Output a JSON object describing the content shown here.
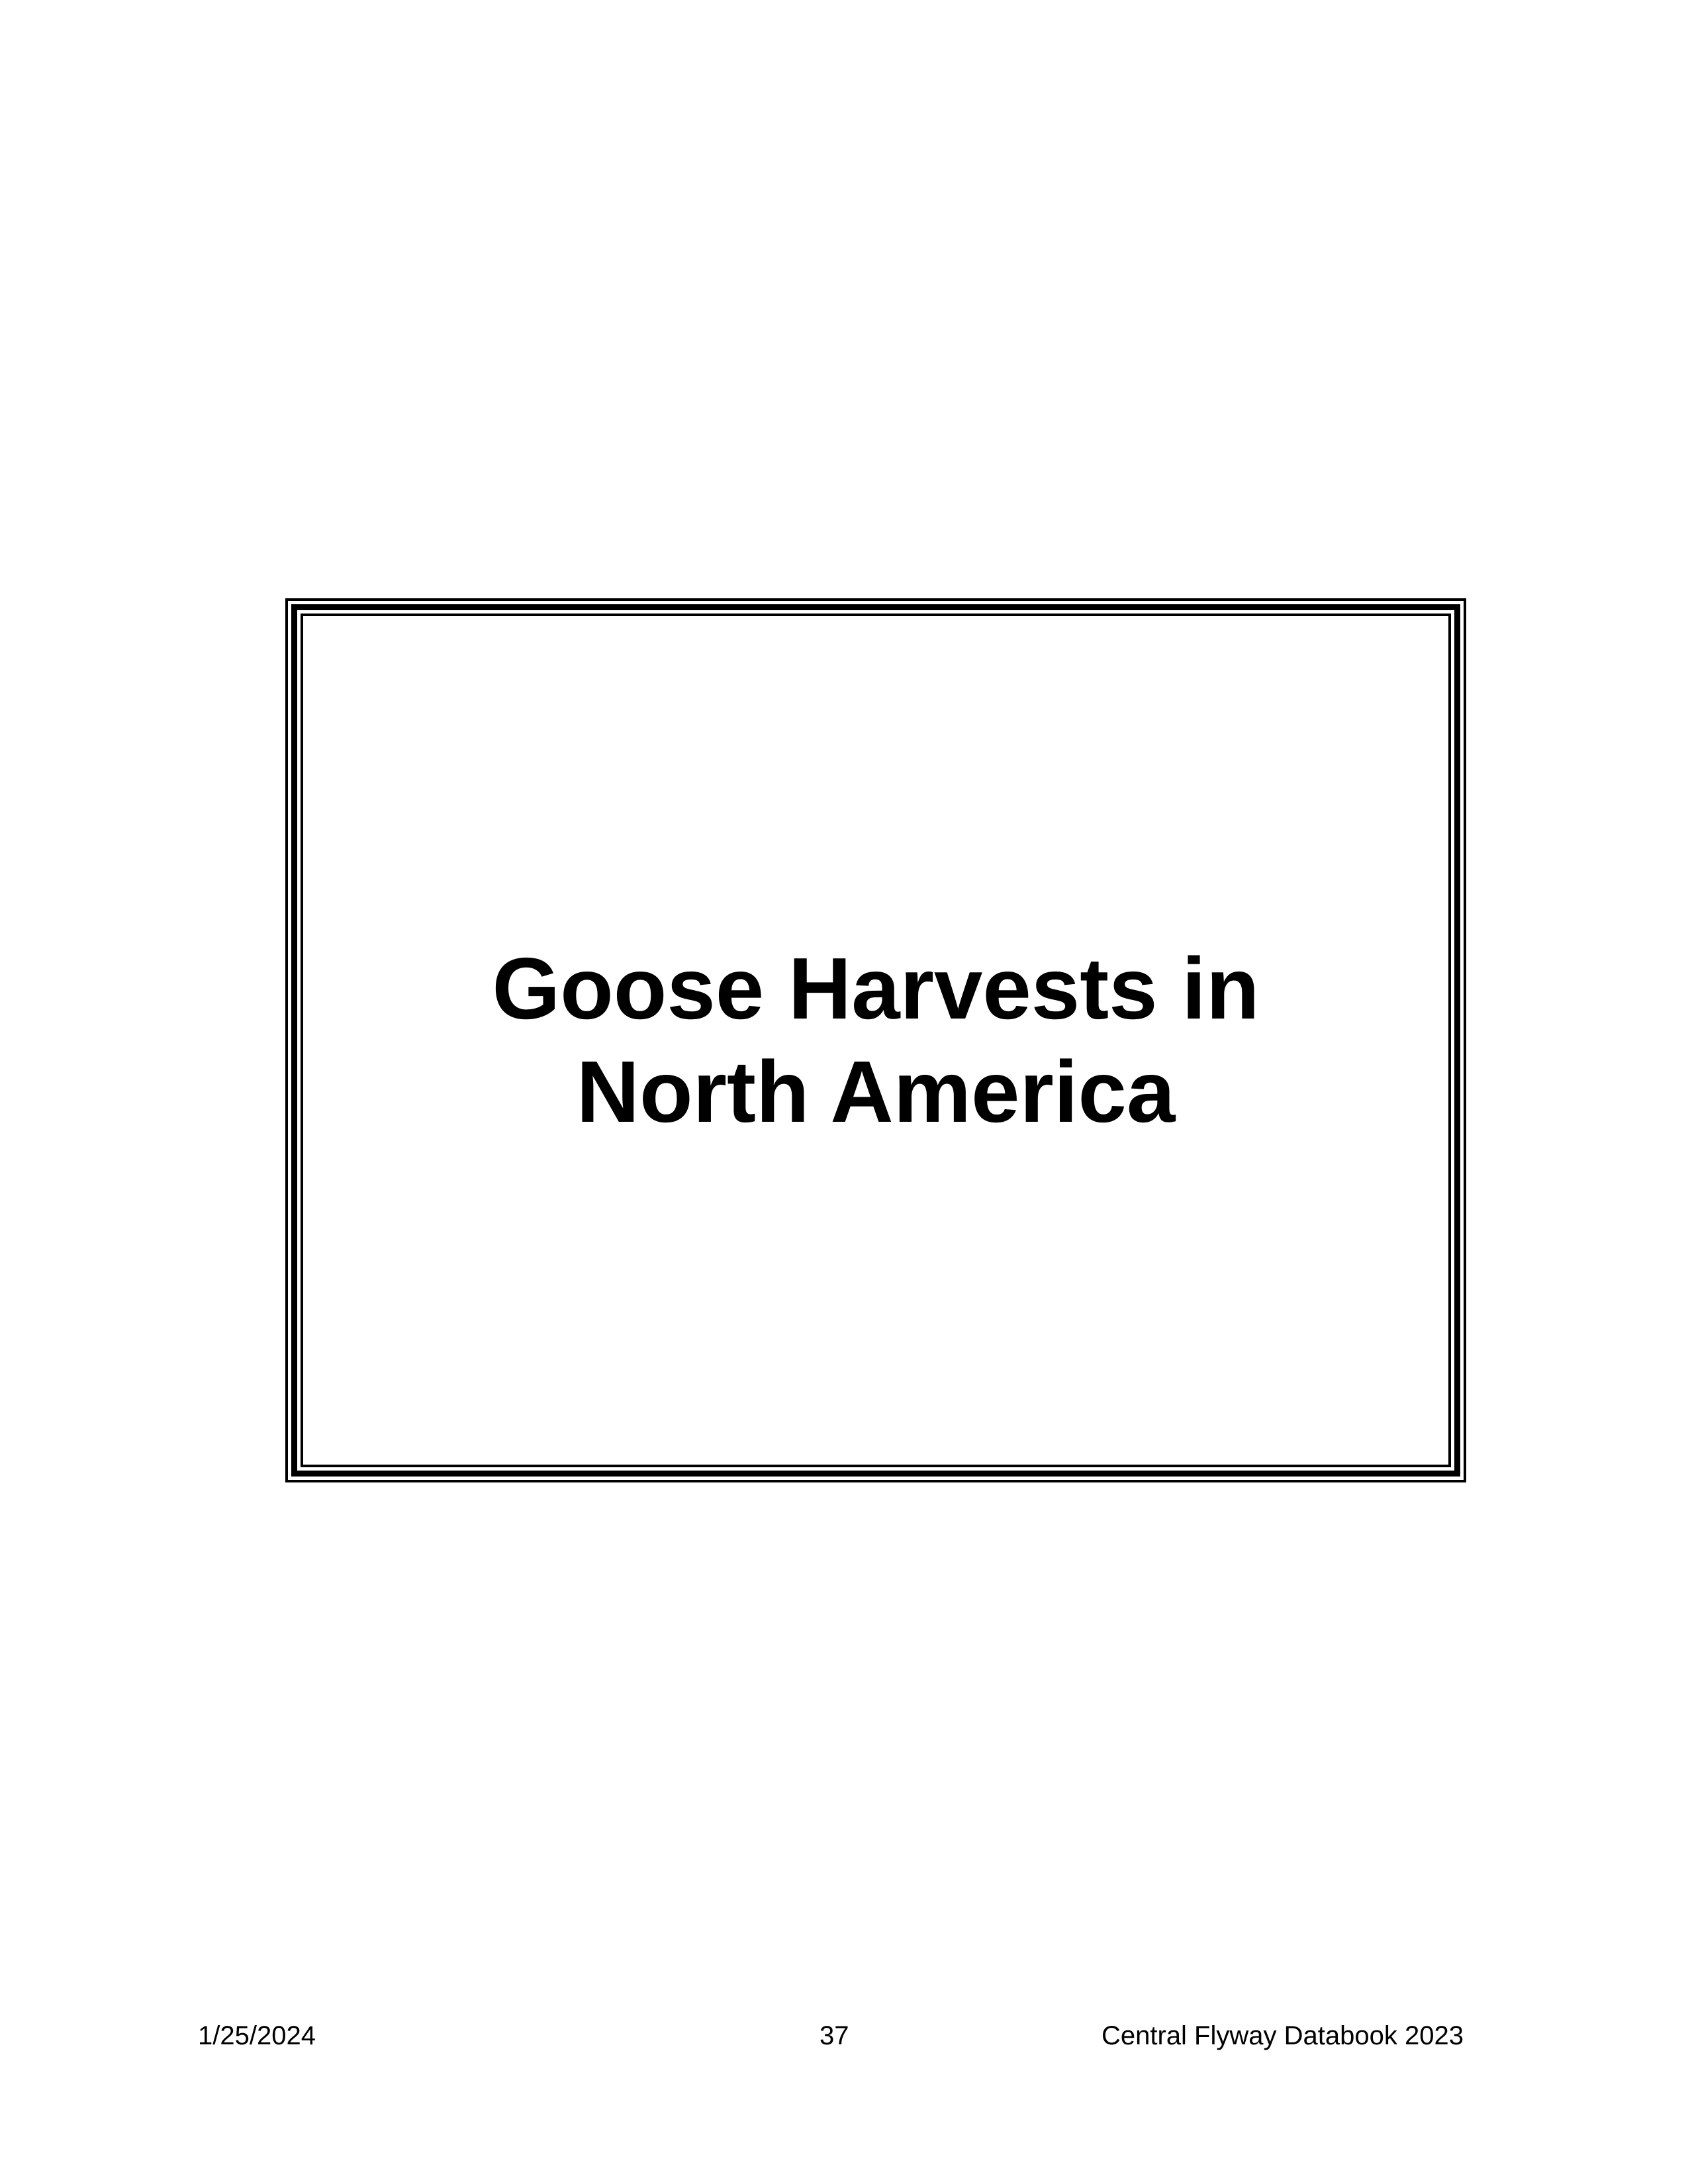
{
  "title": {
    "line1": "Goose Harvests in",
    "line2": "North America"
  },
  "footer": {
    "date": "1/25/2024",
    "page_number": "37",
    "publication": "Central Flyway Databook 2023"
  }
}
